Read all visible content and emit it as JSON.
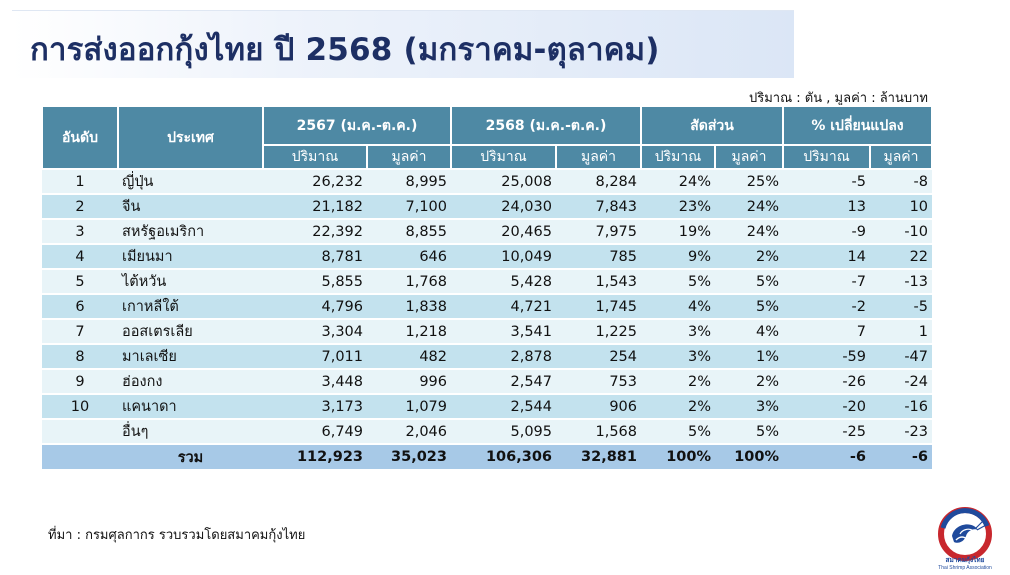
{
  "title": "การส่งออกกุ้งไทย ปี 2568 (มกราคม-ตุลาคม)",
  "unit_note": "ปริมาณ : ตัน , มูลค่า : ล้านบาท",
  "headers": {
    "rank": "อันดับ",
    "country": "ประเทศ",
    "groups": [
      "2567 (ม.ค.-ต.ค.)",
      "2568 (ม.ค.-ต.ค.)",
      "สัดส่วน",
      "% เปลี่ยนแปลง"
    ],
    "sub": [
      "ปริมาณ",
      "มูลค่า",
      "ปริมาณ",
      "มูลค่า",
      "ปริมาณ",
      "มูลค่า",
      "ปริมาณ",
      "มูลค่า"
    ]
  },
  "rows": [
    {
      "rank": "1",
      "country": "ญี่ปุ่น",
      "q67": "26,232",
      "v67": "8,995",
      "q68": "25,008",
      "v68": "8,284",
      "sq": "24%",
      "sv": "25%",
      "cq": "-5",
      "cv": "-8"
    },
    {
      "rank": "2",
      "country": "จีน",
      "q67": "21,182",
      "v67": "7,100",
      "q68": "24,030",
      "v68": "7,843",
      "sq": "23%",
      "sv": "24%",
      "cq": "13",
      "cv": "10"
    },
    {
      "rank": "3",
      "country": "สหรัฐอเมริกา",
      "q67": "22,392",
      "v67": "8,855",
      "q68": "20,465",
      "v68": "7,975",
      "sq": "19%",
      "sv": "24%",
      "cq": "-9",
      "cv": "-10"
    },
    {
      "rank": "4",
      "country": "เมียนมา",
      "q67": "8,781",
      "v67": "646",
      "q68": "10,049",
      "v68": "785",
      "sq": "9%",
      "sv": "2%",
      "cq": "14",
      "cv": "22"
    },
    {
      "rank": "5",
      "country": "ไต้หวัน",
      "q67": "5,855",
      "v67": "1,768",
      "q68": "5,428",
      "v68": "1,543",
      "sq": "5%",
      "sv": "5%",
      "cq": "-7",
      "cv": "-13"
    },
    {
      "rank": "6",
      "country": "เกาหลีใต้",
      "q67": "4,796",
      "v67": "1,838",
      "q68": "4,721",
      "v68": "1,745",
      "sq": "4%",
      "sv": "5%",
      "cq": "-2",
      "cv": "-5"
    },
    {
      "rank": "7",
      "country": "ออสเตรเลีย",
      "q67": "3,304",
      "v67": "1,218",
      "q68": "3,541",
      "v68": "1,225",
      "sq": "3%",
      "sv": "4%",
      "cq": "7",
      "cv": "1"
    },
    {
      "rank": "8",
      "country": "มาเลเซีย",
      "q67": "7,011",
      "v67": "482",
      "q68": "2,878",
      "v68": "254",
      "sq": "3%",
      "sv": "1%",
      "cq": "-59",
      "cv": "-47"
    },
    {
      "rank": "9",
      "country": "ฮ่องกง",
      "q67": "3,448",
      "v67": "996",
      "q68": "2,547",
      "v68": "753",
      "sq": "2%",
      "sv": "2%",
      "cq": "-26",
      "cv": "-24"
    },
    {
      "rank": "10",
      "country": "แคนาดา",
      "q67": "3,173",
      "v67": "1,079",
      "q68": "2,544",
      "v68": "906",
      "sq": "2%",
      "sv": "3%",
      "cq": "-20",
      "cv": "-16"
    },
    {
      "rank": "",
      "country": "อื่นๆ",
      "q67": "6,749",
      "v67": "2,046",
      "q68": "5,095",
      "v68": "1,568",
      "sq": "5%",
      "sv": "5%",
      "cq": "-25",
      "cv": "-23"
    }
  ],
  "total": {
    "label": "รวม",
    "q67": "112,923",
    "v67": "35,023",
    "q68": "106,306",
    "v68": "32,881",
    "sq": "100%",
    "sv": "100%",
    "cq": "-6",
    "cv": "-6"
  },
  "source": "ที่มา : กรมศุลกากร รวบรวมโดยสมาคมกุ้งไทย",
  "logo": {
    "text_th": "สมาคมกุ้งไทย",
    "text_en": "Thai Shrimp Association",
    "icon": "shrimp-icon",
    "colors": {
      "red": "#c8272d",
      "blue": "#1f4a9c"
    }
  }
}
